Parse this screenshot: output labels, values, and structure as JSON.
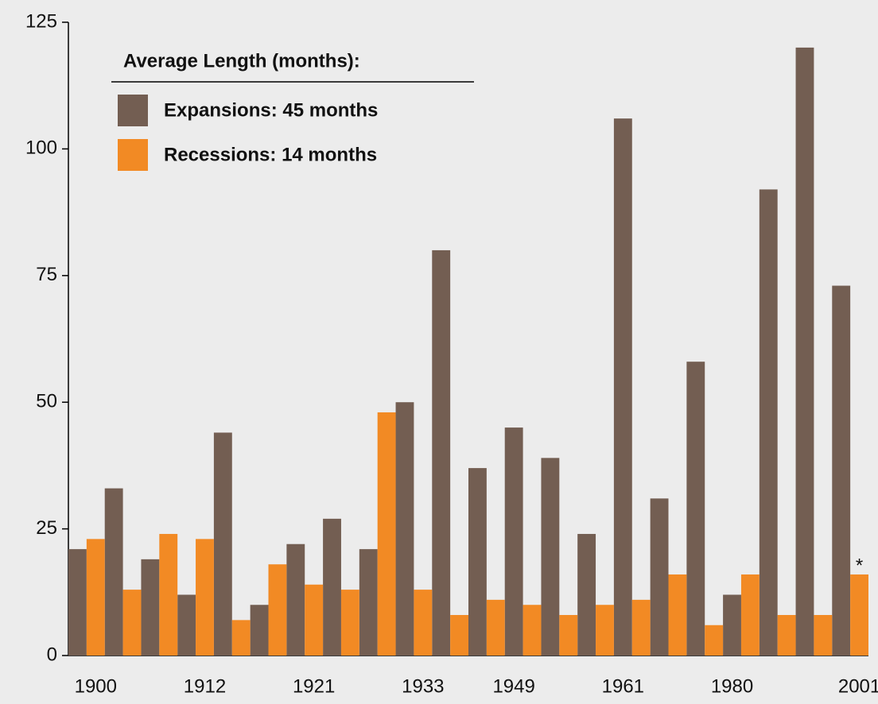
{
  "chart_data": {
    "type": "bar",
    "legend_title": "Average Length (months):",
    "annotation": "*",
    "categories": [
      null,
      "1900",
      null,
      null,
      null,
      null,
      null,
      "1912",
      null,
      null,
      null,
      null,
      null,
      "1921",
      null,
      null,
      null,
      null,
      null,
      "1933",
      null,
      null,
      null,
      null,
      "1949",
      null,
      null,
      null,
      null,
      null,
      "1961",
      null,
      null,
      null,
      null,
      null,
      "1980",
      null,
      null,
      null,
      null,
      null,
      null,
      "2001"
    ],
    "series": [
      {
        "name": "Expansions: 45 months",
        "color": "#735e52",
        "values": [
          21,
          null,
          33,
          null,
          19,
          null,
          12,
          null,
          44,
          null,
          10,
          null,
          22,
          null,
          27,
          null,
          21,
          null,
          50,
          null,
          80,
          null,
          37,
          null,
          45,
          null,
          39,
          null,
          24,
          null,
          106,
          null,
          31,
          null,
          58,
          null,
          12,
          null,
          92,
          null,
          120,
          null,
          73,
          null
        ]
      },
      {
        "name": "Recessions: 14 months",
        "color": "#f28a24",
        "values": [
          null,
          23,
          null,
          13,
          null,
          24,
          null,
          23,
          null,
          7,
          null,
          18,
          null,
          14,
          null,
          13,
          null,
          48,
          null,
          13,
          null,
          8,
          null,
          11,
          null,
          10,
          null,
          8,
          null,
          10,
          null,
          11,
          null,
          16,
          null,
          6,
          null,
          16,
          null,
          8,
          null,
          8,
          null,
          16
        ]
      }
    ],
    "ylim": [
      0,
      125
    ],
    "yticks": [
      0,
      25,
      50,
      75,
      100,
      125
    ],
    "grid": false
  }
}
